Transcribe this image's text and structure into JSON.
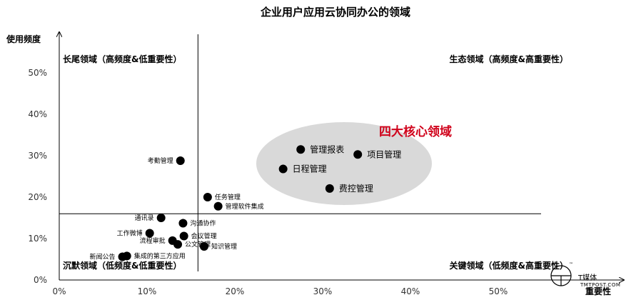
{
  "chart_data": {
    "type": "scatter",
    "title": "企业用户应用云协同办公的领域",
    "xlabel": "重要性",
    "ylabel": "使用频度",
    "xlim": [
      0,
      55
    ],
    "ylim": [
      0,
      55
    ],
    "x_ticks": [
      "0%",
      "10%",
      "20%",
      "30%",
      "40%",
      "50%"
    ],
    "y_ticks": [
      "0%",
      "10%",
      "20%",
      "30%",
      "40%",
      "50%"
    ],
    "threshold_x": 15.8,
    "threshold_y": 16,
    "quadrants": {
      "top_left": "长尾领域（高频度&低重要性）",
      "top_right": "生态领域（高频度&高重要性）",
      "bottom_left": "沉默领域（低频度&低重要性）",
      "bottom_right": "关键领域（低频度&高重要性）"
    },
    "highlight_label": "四大核心领域",
    "points": [
      {
        "label": "考勤管理",
        "x": 13.8,
        "y": 28.8,
        "anchor": "left",
        "big": false
      },
      {
        "label": "管理报表",
        "x": 27.5,
        "y": 31.5,
        "anchor": "right",
        "big": true
      },
      {
        "label": "项目管理",
        "x": 34.0,
        "y": 30.3,
        "anchor": "right",
        "big": true
      },
      {
        "label": "日程管理",
        "x": 25.5,
        "y": 26.8,
        "anchor": "right",
        "big": true
      },
      {
        "label": "费控管理",
        "x": 30.8,
        "y": 22.1,
        "anchor": "right",
        "big": true
      },
      {
        "label": "任务管理",
        "x": 16.9,
        "y": 20.0,
        "anchor": "right",
        "big": false
      },
      {
        "label": "管理软件集成",
        "x": 18.1,
        "y": 17.8,
        "anchor": "right",
        "big": false
      },
      {
        "label": "通讯录",
        "x": 11.6,
        "y": 15.0,
        "anchor": "left",
        "big": false
      },
      {
        "label": "沟通协作",
        "x": 14.1,
        "y": 13.7,
        "anchor": "right",
        "big": false
      },
      {
        "label": "工作微博",
        "x": 10.3,
        "y": 11.3,
        "anchor": "left",
        "big": false
      },
      {
        "label": "会议管理",
        "x": 14.2,
        "y": 10.6,
        "anchor": "right",
        "big": false
      },
      {
        "label": "流程审批",
        "x": 12.9,
        "y": 9.5,
        "anchor": "left",
        "big": false
      },
      {
        "label": "公文管理",
        "x": 13.5,
        "y": 8.6,
        "anchor": "right",
        "big": false
      },
      {
        "label": "知识管理",
        "x": 16.5,
        "y": 8.1,
        "anchor": "right",
        "big": false
      },
      {
        "label": "新闻公告",
        "x": 7.2,
        "y": 5.6,
        "anchor": "left",
        "big": false
      },
      {
        "label": "集成的第三方应用",
        "x": 7.7,
        "y": 5.8,
        "anchor": "right",
        "big": false
      }
    ]
  },
  "logo": {
    "text": "T媒体",
    "url": "TMTPOST.COM",
    "tm": "™"
  }
}
